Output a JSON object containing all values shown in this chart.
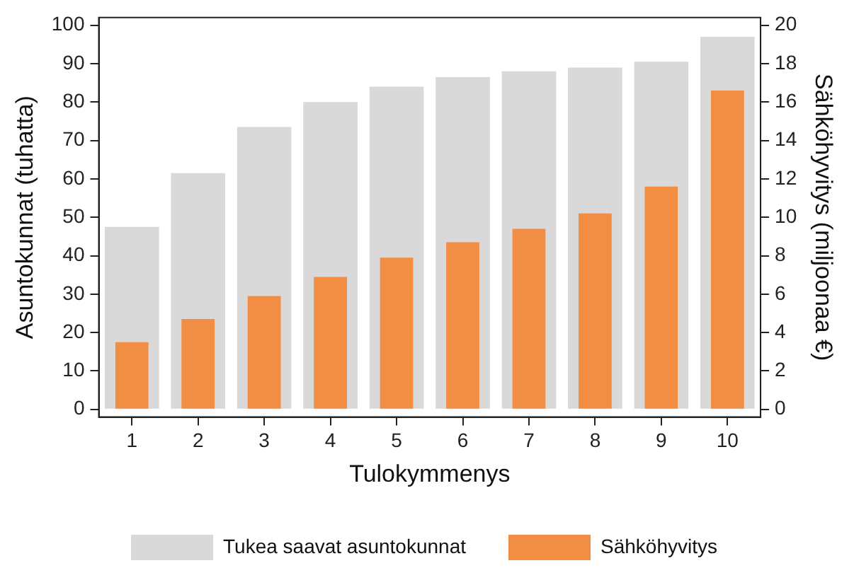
{
  "chart_data": {
    "type": "bar",
    "xlabel": "Tulokymmenys",
    "ylabel": "Asuntokunnat (tuhatta)",
    "y2label": "Sähköhyvitys (miljoonaa €)",
    "categories": [
      "1",
      "2",
      "3",
      "4",
      "5",
      "6",
      "7",
      "8",
      "9",
      "10"
    ],
    "series": [
      {
        "name": "Tukea saavat asuntokunnat",
        "color": "#d9d9d9",
        "values": [
          47.5,
          61.5,
          73.5,
          80,
          84,
          86.5,
          88,
          89,
          90.5,
          97
        ]
      },
      {
        "name": "Sähköhyvitys",
        "color": "#f28e43",
        "axis": "y2",
        "values": [
          3.5,
          4.7,
          5.9,
          6.9,
          7.9,
          8.7,
          9.4,
          10.2,
          11.6,
          16.6
        ]
      }
    ],
    "ylim": [
      -2,
      102
    ],
    "yticks": [
      0,
      10,
      20,
      30,
      40,
      50,
      60,
      70,
      80,
      90,
      100
    ],
    "y2lim": [
      -0.4,
      20.4
    ],
    "y2ticks": [
      0,
      2,
      4,
      6,
      8,
      10,
      12,
      14,
      16,
      18,
      20
    ],
    "grid": false,
    "legend": "bottom"
  }
}
